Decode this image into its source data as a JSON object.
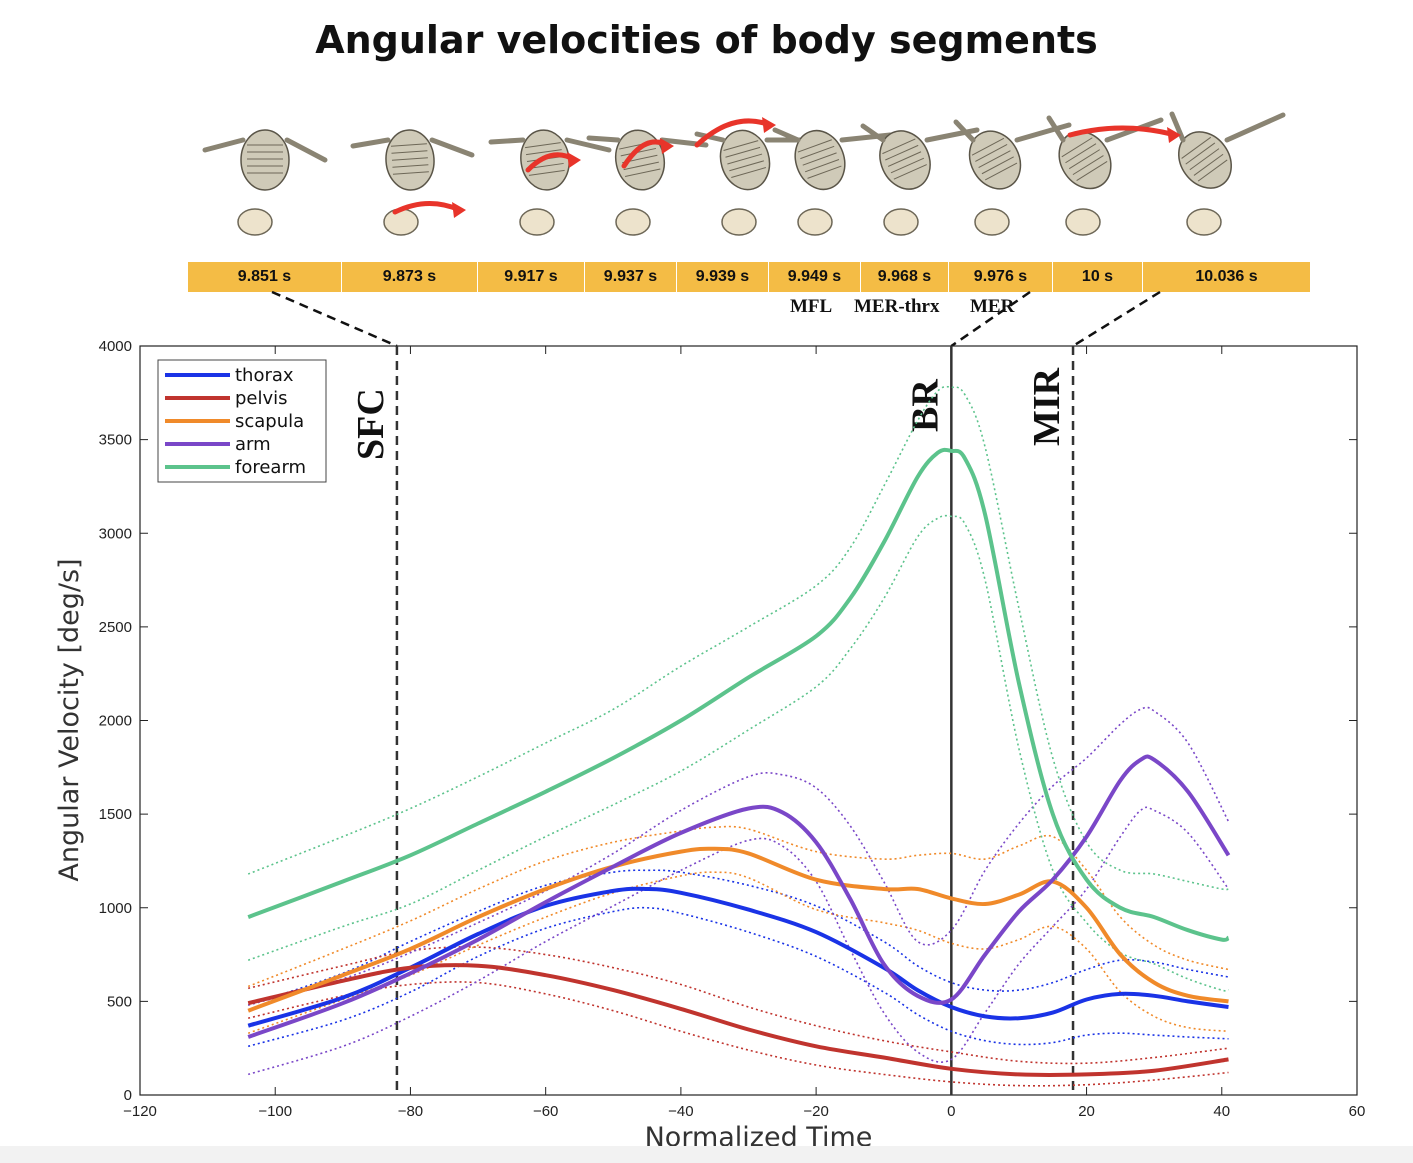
{
  "title": "Angular velocities of body segments",
  "timeline": {
    "cells": [
      "9.851 s",
      "9.873 s",
      "9.917 s",
      "9.937 s",
      "9.939 s",
      "9.949 s",
      "9.968 s",
      "9.976 s",
      "10 s",
      "10.036 s"
    ],
    "phase_labels": [
      "MFL",
      "MER-thrx",
      "MER"
    ]
  },
  "colors": {
    "thorax": "#1a33e6",
    "pelvis": "#c0342e",
    "scapula": "#f08a2a",
    "arm": "#7a47c8",
    "forearm": "#5cc38c"
  },
  "chart_data": {
    "type": "line",
    "xlabel": "Normalized Time",
    "ylabel": "Angular Velocity [deg/s]",
    "xlim": [
      -120,
      60
    ],
    "ylim": [
      0,
      4000
    ],
    "xticks": [
      -120,
      -100,
      -80,
      -60,
      -40,
      -20,
      0,
      20,
      40,
      60
    ],
    "yticks": [
      0,
      500,
      1000,
      1500,
      2000,
      2500,
      3000,
      3500,
      4000
    ],
    "legend_position": "top-left",
    "event_lines": [
      {
        "label": "SFC",
        "x": -82,
        "style": "dashed"
      },
      {
        "label": "BR",
        "x": 0,
        "style": "solid"
      },
      {
        "label": "MIR",
        "x": 18,
        "style": "dashed"
      }
    ],
    "series": [
      {
        "name": "thorax",
        "x": [
          -104,
          -90,
          -80,
          -70,
          -60,
          -50,
          -45,
          -40,
          -30,
          -20,
          -10,
          -5,
          0,
          5,
          10,
          15,
          20,
          25,
          30,
          35,
          41
        ],
        "mean": [
          370,
          520,
          680,
          860,
          1010,
          1090,
          1100,
          1080,
          990,
          870,
          680,
          560,
          470,
          420,
          410,
          440,
          510,
          540,
          530,
          500,
          470
        ],
        "upper": [
          480,
          650,
          820,
          980,
          1120,
          1190,
          1200,
          1190,
          1120,
          1010,
          820,
          690,
          600,
          560,
          560,
          600,
          670,
          720,
          710,
          670,
          630
        ],
        "lower": [
          260,
          400,
          550,
          740,
          890,
          980,
          1000,
          970,
          870,
          740,
          550,
          430,
          340,
          290,
          270,
          280,
          320,
          330,
          320,
          310,
          300
        ]
      },
      {
        "name": "pelvis",
        "x": [
          -104,
          -90,
          -80,
          -70,
          -60,
          -50,
          -40,
          -30,
          -20,
          -10,
          0,
          10,
          20,
          30,
          41
        ],
        "mean": [
          490,
          610,
          680,
          690,
          640,
          560,
          460,
          350,
          260,
          200,
          140,
          110,
          110,
          130,
          190
        ],
        "upper": [
          570,
          690,
          770,
          790,
          750,
          680,
          590,
          470,
          370,
          290,
          230,
          180,
          170,
          200,
          250
        ],
        "lower": [
          410,
          530,
          590,
          600,
          540,
          450,
          340,
          240,
          160,
          110,
          70,
          50,
          55,
          80,
          120
        ]
      },
      {
        "name": "scapula",
        "x": [
          -104,
          -90,
          -80,
          -70,
          -60,
          -50,
          -40,
          -35,
          -30,
          -20,
          -10,
          -5,
          0,
          5,
          10,
          15,
          20,
          25,
          30,
          35,
          41
        ],
        "mean": [
          450,
          640,
          780,
          950,
          1100,
          1220,
          1300,
          1315,
          1290,
          1150,
          1100,
          1100,
          1050,
          1020,
          1070,
          1140,
          1000,
          750,
          600,
          530,
          500
        ],
        "upper": [
          580,
          780,
          930,
          1100,
          1250,
          1350,
          1410,
          1430,
          1420,
          1300,
          1260,
          1280,
          1290,
          1260,
          1330,
          1380,
          1200,
          950,
          800,
          720,
          670
        ],
        "lower": [
          330,
          510,
          640,
          800,
          950,
          1080,
          1170,
          1190,
          1160,
          990,
          920,
          880,
          810,
          780,
          830,
          900,
          780,
          550,
          420,
          360,
          340
        ]
      },
      {
        "name": "arm",
        "x": [
          -104,
          -90,
          -80,
          -70,
          -60,
          -50,
          -40,
          -30,
          -25,
          -20,
          -15,
          -10,
          -5,
          0,
          5,
          10,
          15,
          20,
          25,
          28,
          30,
          35,
          41
        ],
        "mean": [
          310,
          490,
          650,
          830,
          1030,
          1220,
          1400,
          1530,
          1510,
          1350,
          1050,
          700,
          530,
          510,
          750,
          980,
          1150,
          1380,
          1680,
          1790,
          1790,
          1620,
          1280
        ],
        "upper": [
          480,
          620,
          760,
          920,
          1090,
          1290,
          1520,
          1700,
          1710,
          1640,
          1440,
          1140,
          820,
          880,
          1200,
          1450,
          1650,
          1800,
          1980,
          2060,
          2050,
          1880,
          1460
        ],
        "lower": [
          110,
          260,
          420,
          610,
          820,
          1010,
          1200,
          1360,
          1330,
          1140,
          780,
          440,
          230,
          190,
          440,
          700,
          900,
          1100,
          1380,
          1520,
          1520,
          1400,
          1100
        ]
      },
      {
        "name": "forearm",
        "x": [
          -104,
          -90,
          -80,
          -70,
          -60,
          -50,
          -40,
          -30,
          -20,
          -15,
          -10,
          -5,
          -2,
          0,
          2,
          5,
          10,
          15,
          20,
          25,
          30,
          35,
          40,
          41
        ],
        "mean": [
          950,
          1140,
          1280,
          1450,
          1620,
          1800,
          2000,
          2230,
          2450,
          2650,
          2950,
          3300,
          3430,
          3440,
          3400,
          3100,
          2200,
          1500,
          1150,
          1000,
          950,
          880,
          830,
          840
        ],
        "upper": [
          1180,
          1380,
          1530,
          1700,
          1880,
          2060,
          2290,
          2500,
          2720,
          2920,
          3250,
          3600,
          3760,
          3780,
          3740,
          3460,
          2600,
          1800,
          1350,
          1200,
          1180,
          1140,
          1100,
          1100
        ],
        "lower": [
          720,
          900,
          1020,
          1200,
          1380,
          1550,
          1730,
          1950,
          2180,
          2380,
          2650,
          2980,
          3080,
          3090,
          3050,
          2750,
          1850,
          1200,
          920,
          760,
          700,
          620,
          560,
          560
        ]
      }
    ]
  }
}
